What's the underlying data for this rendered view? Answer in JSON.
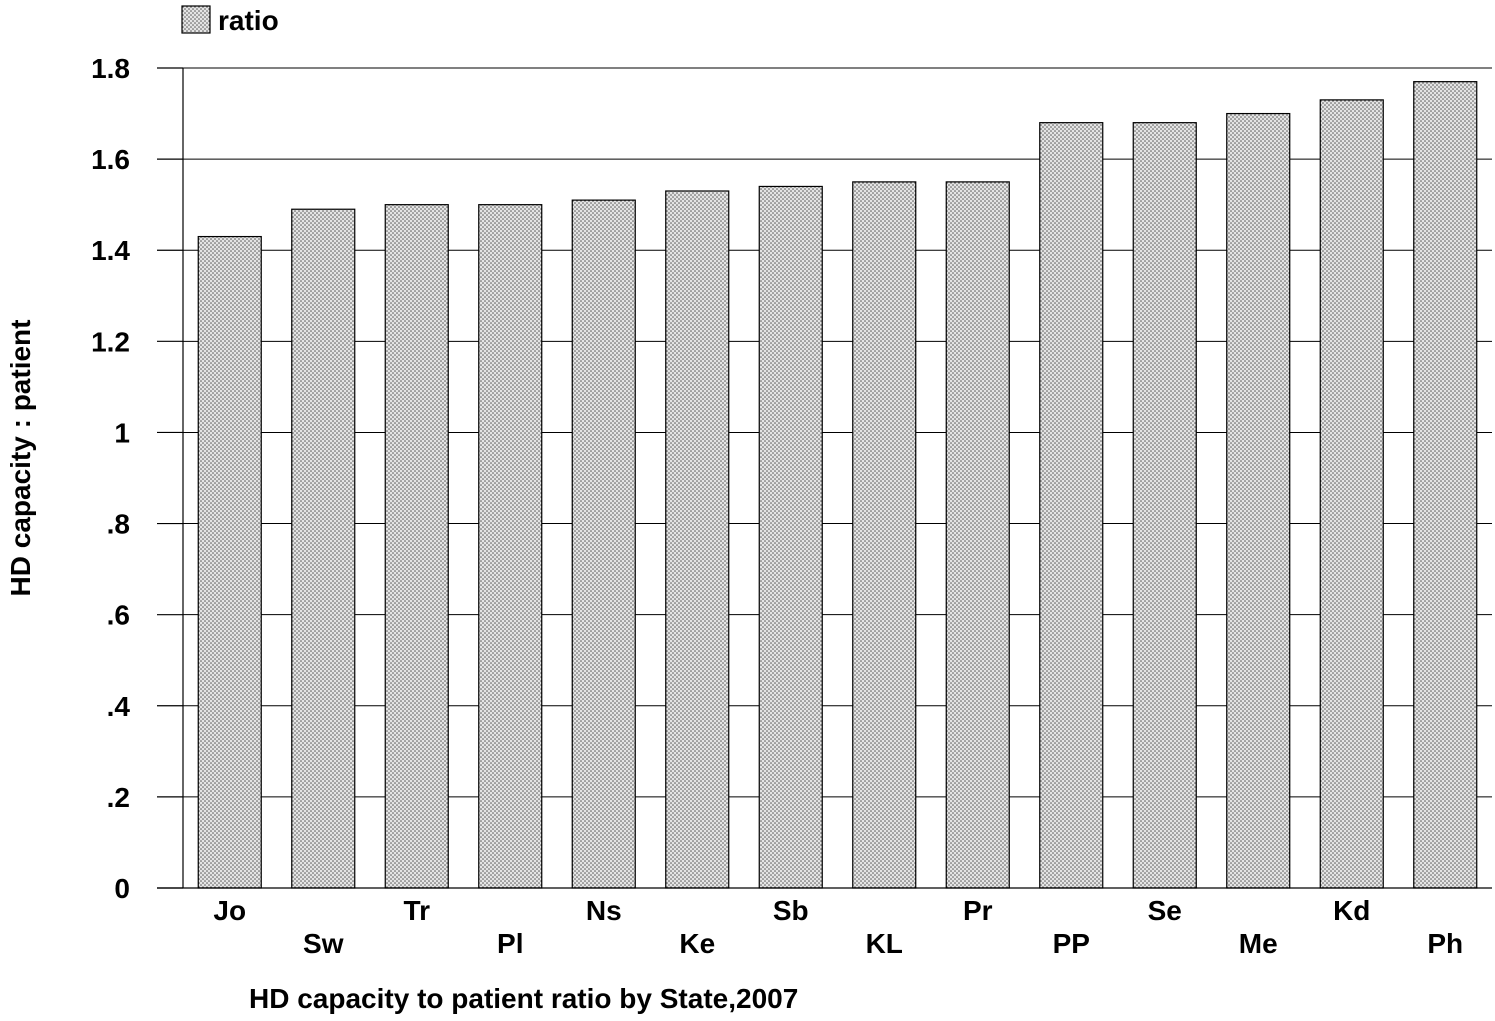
{
  "chart_data": {
    "type": "bar",
    "title": "",
    "xlabel": "HD capacity to patient ratio by State,2007",
    "ylabel": "HD capacity : patient",
    "categories": [
      "Jo",
      "Sw",
      "Tr",
      "Pl",
      "Ns",
      "Ke",
      "Sb",
      "KL",
      "Pr",
      "PP",
      "Se",
      "Me",
      "Kd",
      "Ph"
    ],
    "series": [
      {
        "name": "ratio",
        "values": [
          1.43,
          1.49,
          1.5,
          1.5,
          1.51,
          1.53,
          1.54,
          1.55,
          1.55,
          1.68,
          1.68,
          1.7,
          1.73,
          1.77
        ]
      }
    ],
    "ylim": [
      0,
      1.8
    ],
    "yticks": [
      0,
      0.2,
      0.4,
      0.6,
      0.8,
      1,
      1.2,
      1.4,
      1.6,
      1.8
    ],
    "ytick_labels": [
      "0",
      ".2",
      ".4",
      ".6",
      ".8",
      "1",
      "1.2",
      "1.4",
      "1.6",
      "1.8"
    ],
    "grid": true,
    "legend_position": "top-left",
    "colors": {
      "bar_fill": "#e4e4e4",
      "bar_dots": "#555555",
      "bar_stroke": "#000000",
      "gridline": "#000000"
    }
  }
}
